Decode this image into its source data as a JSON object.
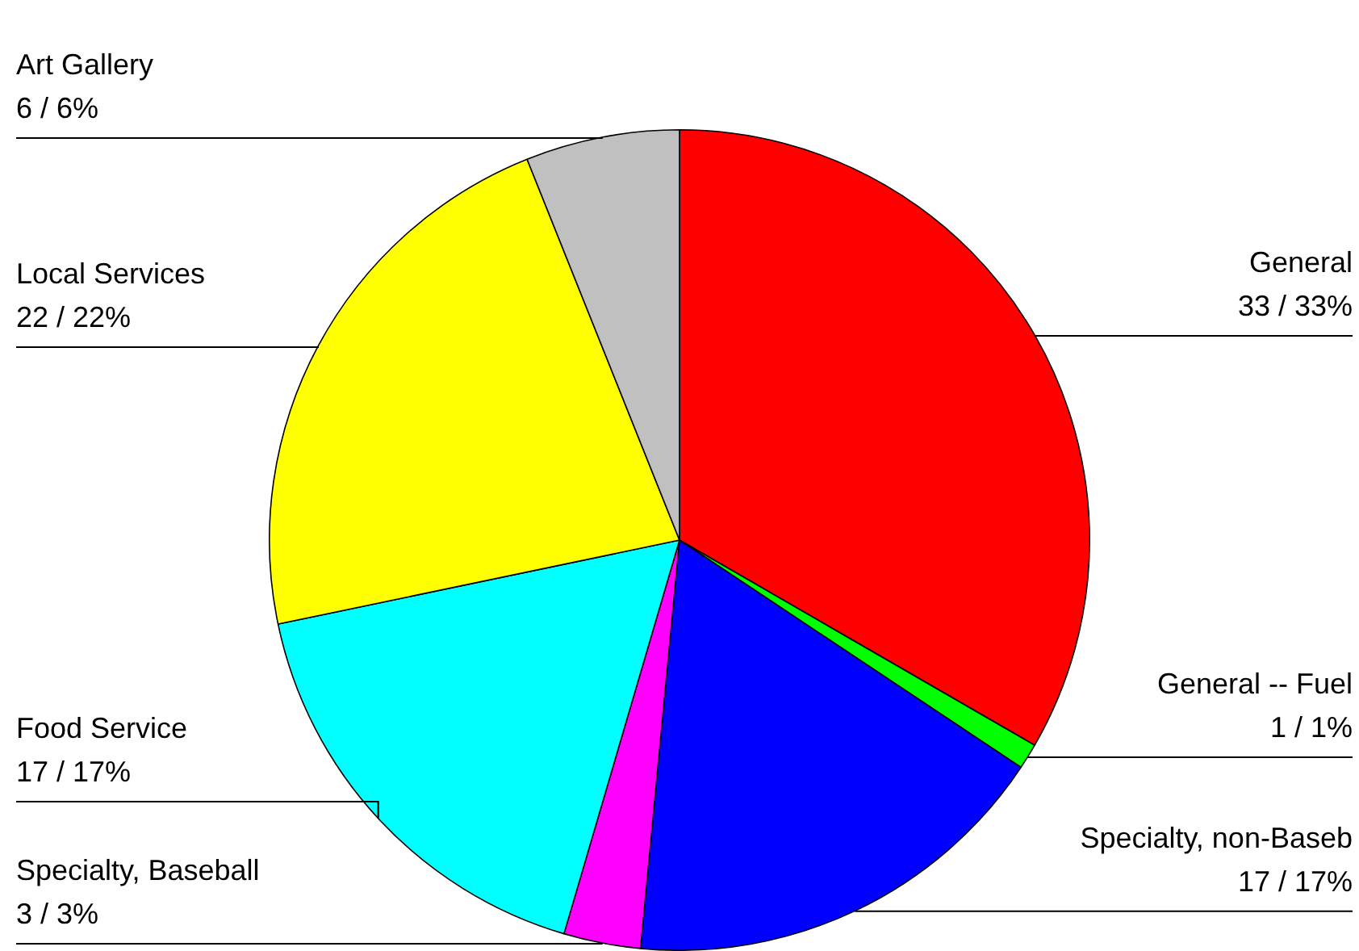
{
  "chart_data": {
    "type": "pie",
    "categories": [
      "General",
      "General -- Fuel",
      "Specialty, non-Baseb",
      "Specialty, Baseball",
      "Food Service",
      "Local Services",
      "Art Gallery"
    ],
    "values": [
      33,
      1,
      17,
      3,
      17,
      22,
      6
    ],
    "colors": [
      "#ff0000",
      "#00ff00",
      "#0000ff",
      "#ff00ff",
      "#00ffff",
      "#ffff00",
      "#c0c0c0"
    ],
    "value_labels": [
      "33 / 33%",
      "1 / 1%",
      "17 / 17%",
      "3 / 3%",
      "17 / 17%",
      "22 / 22%",
      "6 / 6%"
    ],
    "legend": false
  }
}
